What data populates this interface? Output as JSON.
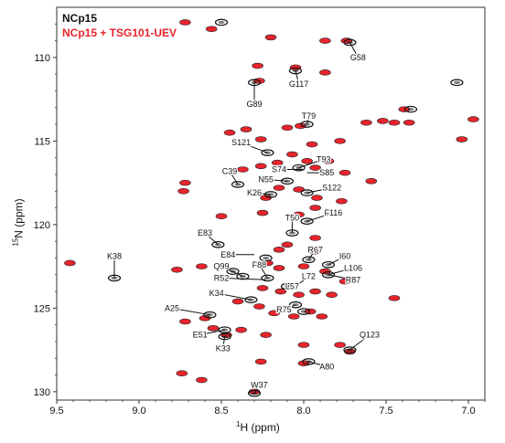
{
  "legend": {
    "series1": "NCp15",
    "series2": "NCp15 + TSG101-UEV"
  },
  "colors": {
    "series1": "#111111",
    "series2": "#e8242d",
    "axis": "#333333"
  },
  "chart_data": {
    "type": "scatter",
    "xlabel_main": "H",
    "xlabel_sup": "1",
    "xlabel_unit": "(ppm)",
    "ylabel_main": "N",
    "ylabel_sup": "15",
    "ylabel_unit": "(ppm)",
    "xlim": [
      9.5,
      6.9
    ],
    "ylim": [
      107,
      130.5
    ],
    "xticks": [
      "9.5",
      "9.0",
      "8.5",
      "8.0",
      "7.5",
      "7.0"
    ],
    "xtick_values": [
      9.5,
      9.0,
      8.5,
      8.0,
      7.5,
      7.0
    ],
    "yticks": [
      "110",
      "115",
      "120",
      "125",
      "130"
    ],
    "ytick_values": [
      110,
      115,
      120,
      125,
      130
    ],
    "series": [
      {
        "name": "NCp15",
        "color": "#111111",
        "points": [
          [
            7.72,
            109.1
          ],
          [
            8.05,
            110.8
          ],
          [
            8.3,
            111.5
          ],
          [
            7.98,
            114.0
          ],
          [
            8.22,
            115.7
          ],
          [
            8.03,
            116.6
          ],
          [
            8.1,
            117.4
          ],
          [
            8.4,
            117.6
          ],
          [
            8.2,
            118.2
          ],
          [
            7.98,
            118.1
          ],
          [
            7.98,
            119.8
          ],
          [
            8.07,
            120.5
          ],
          [
            8.52,
            121.2
          ],
          [
            9.15,
            123.2
          ],
          [
            8.43,
            122.8
          ],
          [
            8.23,
            122.0
          ],
          [
            8.37,
            123.1
          ],
          [
            8.22,
            123.2
          ],
          [
            8.1,
            123.7
          ],
          [
            8.32,
            124.5
          ],
          [
            8.05,
            124.8
          ],
          [
            8.0,
            125.2
          ],
          [
            7.97,
            122.1
          ],
          [
            7.85,
            122.4
          ],
          [
            7.85,
            123.0
          ],
          [
            8.48,
            126.3
          ],
          [
            8.48,
            126.7
          ],
          [
            8.57,
            125.4
          ],
          [
            7.97,
            128.2
          ],
          [
            7.72,
            127.5
          ],
          [
            8.3,
            130.1
          ],
          [
            7.07,
            111.5
          ],
          [
            8.5,
            107.9
          ],
          [
            7.35,
            113.1
          ]
        ]
      },
      {
        "name": "NCp15 + TSG101-UEV",
        "color": "#e8242d",
        "points": [
          [
            8.56,
            108.3
          ],
          [
            8.2,
            108.8
          ],
          [
            7.74,
            109.0
          ],
          [
            7.87,
            109.0
          ],
          [
            8.28,
            110.5
          ],
          [
            8.05,
            110.6
          ],
          [
            7.87,
            110.9
          ],
          [
            8.27,
            111.4
          ],
          [
            7.39,
            113.1
          ],
          [
            7.62,
            113.9
          ],
          [
            7.52,
            113.8
          ],
          [
            7.45,
            113.9
          ],
          [
            7.36,
            113.9
          ],
          [
            6.97,
            113.7
          ],
          [
            7.04,
            114.9
          ],
          [
            8.02,
            114.1
          ],
          [
            8.1,
            114.2
          ],
          [
            8.35,
            114.3
          ],
          [
            8.45,
            114.5
          ],
          [
            8.26,
            114.9
          ],
          [
            7.95,
            115.2
          ],
          [
            7.78,
            115.0
          ],
          [
            8.07,
            115.8
          ],
          [
            7.85,
            116.2
          ],
          [
            7.98,
            116.2
          ],
          [
            7.93,
            116.6
          ],
          [
            8.16,
            116.3
          ],
          [
            8.26,
            116.5
          ],
          [
            8.37,
            116.7
          ],
          [
            7.75,
            116.9
          ],
          [
            7.59,
            117.4
          ],
          [
            8.72,
            117.5
          ],
          [
            8.73,
            118.0
          ],
          [
            8.15,
            117.8
          ],
          [
            8.03,
            117.9
          ],
          [
            8.23,
            118.4
          ],
          [
            7.92,
            118.4
          ],
          [
            7.77,
            118.6
          ],
          [
            8.25,
            119.3
          ],
          [
            8.03,
            119.4
          ],
          [
            7.93,
            119.0
          ],
          [
            8.5,
            119.5
          ],
          [
            7.93,
            120.8
          ],
          [
            8.1,
            121.2
          ],
          [
            8.15,
            121.5
          ],
          [
            7.93,
            121.6
          ],
          [
            7.75,
            121.9
          ],
          [
            8.62,
            122.5
          ],
          [
            9.42,
            122.3
          ],
          [
            8.77,
            122.7
          ],
          [
            8.22,
            122.3
          ],
          [
            8.15,
            122.6
          ],
          [
            8.0,
            122.5
          ],
          [
            7.87,
            122.8
          ],
          [
            7.75,
            123.4
          ],
          [
            8.25,
            123.8
          ],
          [
            8.14,
            124.0
          ],
          [
            8.03,
            124.2
          ],
          [
            7.93,
            124.0
          ],
          [
            7.83,
            124.2
          ],
          [
            7.45,
            124.4
          ],
          [
            8.4,
            124.6
          ],
          [
            8.27,
            124.9
          ],
          [
            8.18,
            125.3
          ],
          [
            8.06,
            125.5
          ],
          [
            7.96,
            125.2
          ],
          [
            7.89,
            125.5
          ],
          [
            8.6,
            125.6
          ],
          [
            8.72,
            125.8
          ],
          [
            8.55,
            126.2
          ],
          [
            8.38,
            126.3
          ],
          [
            8.23,
            126.6
          ],
          [
            8.0,
            127.2
          ],
          [
            7.78,
            127.2
          ],
          [
            7.72,
            127.6
          ],
          [
            8.47,
            126.6
          ],
          [
            8.26,
            128.2
          ],
          [
            8.0,
            128.3
          ],
          [
            8.74,
            128.9
          ],
          [
            8.62,
            129.3
          ],
          [
            8.3,
            130.0
          ],
          [
            8.72,
            107.9
          ]
        ]
      }
    ],
    "annotations": [
      {
        "text": "G58",
        "x": 7.72,
        "y": 109.1,
        "lx": 7.67,
        "ly": 110.0
      },
      {
        "text": "G117",
        "x": 8.05,
        "y": 110.8,
        "lx": 8.03,
        "ly": 111.6
      },
      {
        "text": "G89",
        "x": 8.3,
        "y": 111.5,
        "lx": 8.3,
        "ly": 112.8
      },
      {
        "text": "T79",
        "x": 7.98,
        "y": 114.0,
        "lx": 7.97,
        "ly": 113.5
      },
      {
        "text": "S121",
        "x": 8.22,
        "y": 115.7,
        "lx": 8.38,
        "ly": 115.1
      },
      {
        "text": "T93",
        "x": 8.03,
        "y": 116.6,
        "lx": 7.88,
        "ly": 116.1
      },
      {
        "text": "S74",
        "x": 8.0,
        "y": 116.7,
        "lx": 8.15,
        "ly": 116.7
      },
      {
        "text": "S85",
        "x": 7.98,
        "y": 116.9,
        "lx": 7.86,
        "ly": 116.9
      },
      {
        "text": "C39",
        "x": 8.4,
        "y": 117.6,
        "lx": 8.45,
        "ly": 116.8
      },
      {
        "text": "N55",
        "x": 8.1,
        "y": 117.4,
        "lx": 8.23,
        "ly": 117.3
      },
      {
        "text": "K26",
        "x": 8.2,
        "y": 118.2,
        "lx": 8.3,
        "ly": 118.1
      },
      {
        "text": "S122",
        "x": 7.98,
        "y": 118.1,
        "lx": 7.83,
        "ly": 117.8
      },
      {
        "text": "T50",
        "x": 8.07,
        "y": 120.5,
        "lx": 8.07,
        "ly": 119.6
      },
      {
        "text": "F116",
        "x": 7.98,
        "y": 119.8,
        "lx": 7.82,
        "ly": 119.3
      },
      {
        "text": "E83",
        "x": 8.52,
        "y": 121.2,
        "lx": 8.6,
        "ly": 120.5
      },
      {
        "text": "E84",
        "x": 8.3,
        "y": 121.8,
        "lx": 8.46,
        "ly": 121.8
      },
      {
        "text": "R67",
        "x": 7.97,
        "y": 122.1,
        "lx": 7.93,
        "ly": 121.5
      },
      {
        "text": "I60",
        "x": 7.85,
        "y": 122.4,
        "lx": 7.75,
        "ly": 121.9
      },
      {
        "text": "K38",
        "x": 9.15,
        "y": 123.2,
        "lx": 9.15,
        "ly": 121.9
      },
      {
        "text": "Q99",
        "x": 8.37,
        "y": 123.1,
        "lx": 8.5,
        "ly": 122.5
      },
      {
        "text": "F88",
        "x": 8.22,
        "y": 123.2,
        "lx": 8.27,
        "ly": 122.4
      },
      {
        "text": "L106",
        "x": 7.85,
        "y": 123.0,
        "lx": 7.7,
        "ly": 122.6
      },
      {
        "text": "R52",
        "x": 8.23,
        "y": 123.3,
        "lx": 8.5,
        "ly": 123.2
      },
      {
        "text": "L72",
        "x": 8.05,
        "y": 123.7,
        "lx": 7.97,
        "ly": 123.1
      },
      {
        "text": "R87",
        "x": 7.85,
        "y": 123.0,
        "lx": 7.7,
        "ly": 123.3
      },
      {
        "text": "L57",
        "x": 8.1,
        "y": 123.7,
        "lx": 8.07,
        "ly": 123.7
      },
      {
        "text": "K34",
        "x": 8.32,
        "y": 124.5,
        "lx": 8.53,
        "ly": 124.1
      },
      {
        "text": "R75",
        "x": 8.05,
        "y": 124.8,
        "lx": 8.12,
        "ly": 125.1
      },
      {
        "text": "A25",
        "x": 8.57,
        "y": 125.4,
        "lx": 8.8,
        "ly": 125.0
      },
      {
        "text": "E51",
        "x": 8.48,
        "y": 126.3,
        "lx": 8.63,
        "ly": 126.6
      },
      {
        "text": "K33",
        "x": 8.48,
        "y": 126.7,
        "lx": 8.49,
        "ly": 127.4
      },
      {
        "text": "Q123",
        "x": 7.72,
        "y": 127.5,
        "lx": 7.6,
        "ly": 126.6
      },
      {
        "text": "A80",
        "x": 7.97,
        "y": 128.2,
        "lx": 7.86,
        "ly": 128.5
      },
      {
        "text": "W37",
        "x": 8.3,
        "y": 130.1,
        "lx": 8.27,
        "ly": 129.6
      }
    ],
    "grid": false,
    "legend_position": "top-left"
  }
}
